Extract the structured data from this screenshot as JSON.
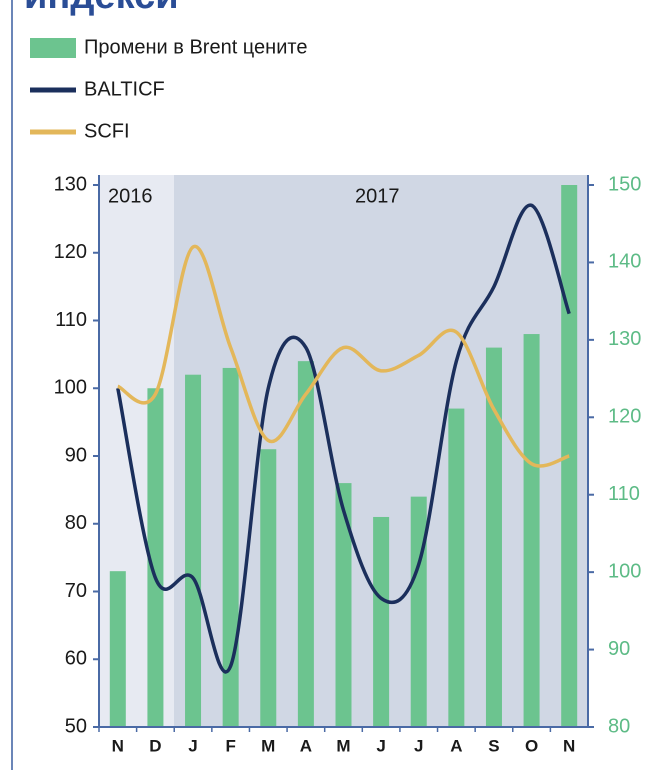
{
  "chart_data": {
    "type": "bar",
    "title": "индекси",
    "categories": [
      "N",
      "D",
      "J",
      "F",
      "M",
      "A",
      "M",
      "J",
      "J",
      "A",
      "S",
      "O",
      "N"
    ],
    "series": [
      {
        "name": "Промени в Brent цените",
        "type": "bar",
        "color": "#6cc48f",
        "values": [
          73,
          100,
          102,
          103,
          91,
          104,
          86,
          81,
          84,
          97,
          106,
          108,
          130
        ]
      },
      {
        "name": "BALTICF",
        "type": "line",
        "color": "#1b2f5c",
        "values": [
          100,
          72,
          72,
          59,
          100,
          106,
          82,
          69,
          74,
          104,
          115,
          127,
          111
        ]
      },
      {
        "name": "SCFI",
        "type": "line",
        "axis": "y2",
        "color": "#e3b75a",
        "values": [
          124,
          123,
          142,
          129,
          117,
          123,
          129,
          126,
          128,
          131,
          121,
          114,
          115
        ]
      }
    ],
    "ylim": [
      50,
      130
    ],
    "yticks": [
      50,
      60,
      70,
      80,
      90,
      100,
      110,
      120,
      130
    ],
    "y2lim": [
      80,
      150
    ],
    "y2ticks": [
      80,
      90,
      100,
      110,
      120,
      130,
      140,
      150
    ],
    "annotations": [
      "2016",
      "2017"
    ]
  }
}
